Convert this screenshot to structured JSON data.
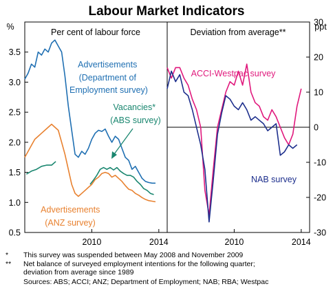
{
  "chart_data": {
    "type": "line",
    "title": "Labour Market Indicators",
    "panels": [
      {
        "subtitle": "Per cent of labour force",
        "yunit": "%",
        "ylim": [
          0.5,
          4.0
        ],
        "yticks": [
          0.5,
          1.0,
          1.5,
          2.0,
          2.5,
          3.0,
          3.5
        ],
        "xlim": [
          2006.0,
          2014.5
        ],
        "xticks": [
          2010,
          2014
        ],
        "series": [
          {
            "name": "Advertisements (Department of Employment survey)",
            "label_lines": [
              "Advertisements",
              "(Department of",
              "Employment survey)"
            ],
            "color": "#1f6fb2",
            "segments": [
              [
                [
                  2006.0,
                  3.05
                ],
                [
                  2006.2,
                  3.15
                ],
                [
                  2006.4,
                  3.3
                ],
                [
                  2006.6,
                  3.25
                ],
                [
                  2006.8,
                  3.5
                ],
                [
                  2007.0,
                  3.45
                ],
                [
                  2007.2,
                  3.55
                ],
                [
                  2007.4,
                  3.5
                ],
                [
                  2007.6,
                  3.65
                ],
                [
                  2007.8,
                  3.7
                ],
                [
                  2008.0,
                  3.6
                ],
                [
                  2008.2,
                  3.5
                ],
                [
                  2008.4,
                  3.1
                ],
                [
                  2008.6,
                  2.6
                ],
                [
                  2008.8,
                  2.2
                ],
                [
                  2009.0,
                  1.8
                ],
                [
                  2009.2,
                  1.75
                ],
                [
                  2009.4,
                  1.85
                ],
                [
                  2009.6,
                  1.8
                ],
                [
                  2009.8,
                  1.9
                ],
                [
                  2010.0,
                  2.05
                ],
                [
                  2010.2,
                  2.15
                ],
                [
                  2010.4,
                  2.2
                ],
                [
                  2010.6,
                  2.18
                ],
                [
                  2010.8,
                  2.22
                ],
                [
                  2011.0,
                  2.1
                ],
                [
                  2011.2,
                  2.0
                ],
                [
                  2011.4,
                  2.1
                ],
                [
                  2011.6,
                  2.05
                ],
                [
                  2011.8,
                  1.9
                ],
                [
                  2012.0,
                  1.75
                ],
                [
                  2012.2,
                  1.7
                ],
                [
                  2012.4,
                  1.55
                ],
                [
                  2012.6,
                  1.6
                ],
                [
                  2012.8,
                  1.5
                ],
                [
                  2013.0,
                  1.4
                ],
                [
                  2013.2,
                  1.35
                ],
                [
                  2013.4,
                  1.33
                ],
                [
                  2013.6,
                  1.32
                ],
                [
                  2013.8,
                  1.32
                ]
              ]
            ]
          },
          {
            "name": "Vacancies* (ABS survey)",
            "label_lines": [
              "Vacancies*",
              "(ABS survey)"
            ],
            "color": "#19866f",
            "segments": [
              [
                [
                  2006.1,
                  1.47
                ],
                [
                  2006.4,
                  1.52
                ],
                [
                  2006.7,
                  1.55
                ],
                [
                  2007.0,
                  1.6
                ],
                [
                  2007.3,
                  1.62
                ],
                [
                  2007.6,
                  1.62
                ],
                [
                  2007.85,
                  1.68
                ]
              ],
              [
                [
                  2009.9,
                  1.3
                ],
                [
                  2010.1,
                  1.37
                ],
                [
                  2010.3,
                  1.45
                ],
                [
                  2010.5,
                  1.55
                ],
                [
                  2010.7,
                  1.58
                ],
                [
                  2010.9,
                  1.55
                ],
                [
                  2011.1,
                  1.58
                ],
                [
                  2011.3,
                  1.54
                ],
                [
                  2011.5,
                  1.58
                ],
                [
                  2011.7,
                  1.52
                ],
                [
                  2011.9,
                  1.48
                ],
                [
                  2012.1,
                  1.45
                ],
                [
                  2012.3,
                  1.45
                ],
                [
                  2012.5,
                  1.42
                ],
                [
                  2012.7,
                  1.35
                ],
                [
                  2012.9,
                  1.3
                ],
                [
                  2013.1,
                  1.23
                ],
                [
                  2013.3,
                  1.2
                ],
                [
                  2013.5,
                  1.15
                ],
                [
                  2013.7,
                  1.13
                ]
              ]
            ]
          },
          {
            "name": "Advertisements (ANZ survey)",
            "label_lines": [
              "Advertisements",
              "(ANZ survey)"
            ],
            "color": "#e8812f",
            "segments": [
              [
                [
                  2006.0,
                  1.75
                ],
                [
                  2006.2,
                  1.85
                ],
                [
                  2006.4,
                  1.95
                ],
                [
                  2006.6,
                  2.05
                ],
                [
                  2006.8,
                  2.1
                ],
                [
                  2007.0,
                  2.15
                ],
                [
                  2007.2,
                  2.2
                ],
                [
                  2007.4,
                  2.25
                ],
                [
                  2007.6,
                  2.3
                ],
                [
                  2007.8,
                  2.25
                ],
                [
                  2008.0,
                  2.2
                ],
                [
                  2008.2,
                  2.0
                ],
                [
                  2008.4,
                  1.8
                ],
                [
                  2008.6,
                  1.55
                ],
                [
                  2008.8,
                  1.3
                ],
                [
                  2009.0,
                  1.15
                ],
                [
                  2009.2,
                  1.1
                ],
                [
                  2009.4,
                  1.15
                ],
                [
                  2009.6,
                  1.2
                ],
                [
                  2009.8,
                  1.25
                ],
                [
                  2010.0,
                  1.3
                ],
                [
                  2010.2,
                  1.38
                ],
                [
                  2010.4,
                  1.42
                ],
                [
                  2010.6,
                  1.48
                ],
                [
                  2010.8,
                  1.5
                ],
                [
                  2011.0,
                  1.48
                ],
                [
                  2011.2,
                  1.42
                ],
                [
                  2011.4,
                  1.45
                ],
                [
                  2011.6,
                  1.4
                ],
                [
                  2011.8,
                  1.35
                ],
                [
                  2012.0,
                  1.28
                ],
                [
                  2012.2,
                  1.22
                ],
                [
                  2012.4,
                  1.2
                ],
                [
                  2012.6,
                  1.15
                ],
                [
                  2012.8,
                  1.12
                ],
                [
                  2013.0,
                  1.08
                ],
                [
                  2013.2,
                  1.05
                ],
                [
                  2013.4,
                  1.03
                ],
                [
                  2013.6,
                  1.02
                ],
                [
                  2013.8,
                  1.01
                ]
              ]
            ]
          }
        ]
      },
      {
        "subtitle": "Deviation from average**",
        "yunit": "ppt",
        "ylim": [
          -30,
          30
        ],
        "yticks": [
          -30,
          -20,
          -10,
          0,
          10,
          20,
          30
        ],
        "xlim": [
          2006.0,
          2014.5
        ],
        "xticks": [
          2010,
          2014
        ],
        "series": [
          {
            "name": "ACCI-Westpac survey",
            "label_lines": [
              "ACCI-Westpac survey"
            ],
            "color": "#e0187c",
            "segments": [
              [
                [
                  2006.0,
                  17
                ],
                [
                  2006.25,
                  14
                ],
                [
                  2006.5,
                  17
                ],
                [
                  2006.75,
                  17
                ],
                [
                  2007.0,
                  14
                ],
                [
                  2007.25,
                  12
                ],
                [
                  2007.5,
                  8
                ],
                [
                  2007.75,
                  5
                ],
                [
                  2008.0,
                  0
                ],
                [
                  2008.25,
                  -18
                ],
                [
                  2008.5,
                  -25
                ],
                [
                  2008.75,
                  -12
                ],
                [
                  2009.0,
                  0
                ],
                [
                  2009.25,
                  5
                ],
                [
                  2009.5,
                  10
                ],
                [
                  2009.75,
                  13
                ],
                [
                  2010.0,
                  12
                ],
                [
                  2010.25,
                  16
                ],
                [
                  2010.5,
                  12
                ],
                [
                  2010.75,
                  18
                ],
                [
                  2011.0,
                  10
                ],
                [
                  2011.25,
                  7
                ],
                [
                  2011.5,
                  6
                ],
                [
                  2011.75,
                  3
                ],
                [
                  2012.0,
                  2
                ],
                [
                  2012.25,
                  5
                ],
                [
                  2012.5,
                  3
                ],
                [
                  2012.75,
                  0
                ],
                [
                  2013.0,
                  -3
                ],
                [
                  2013.25,
                  -5
                ],
                [
                  2013.5,
                  -2
                ],
                [
                  2013.75,
                  6
                ],
                [
                  2014.0,
                  11
                ]
              ]
            ]
          },
          {
            "name": "NAB survey",
            "label_lines": [
              "NAB survey"
            ],
            "color": "#1c2e8c",
            "segments": [
              [
                [
                  2006.0,
                  11
                ],
                [
                  2006.25,
                  16
                ],
                [
                  2006.5,
                  13
                ],
                [
                  2006.75,
                  15
                ],
                [
                  2007.0,
                  10
                ],
                [
                  2007.25,
                  9
                ],
                [
                  2007.5,
                  5
                ],
                [
                  2007.75,
                  0
                ],
                [
                  2008.0,
                  -5
                ],
                [
                  2008.25,
                  -12
                ],
                [
                  2008.5,
                  -27
                ],
                [
                  2008.75,
                  -15
                ],
                [
                  2009.0,
                  -2
                ],
                [
                  2009.25,
                  4
                ],
                [
                  2009.5,
                  9
                ],
                [
                  2009.75,
                  8
                ],
                [
                  2010.0,
                  6
                ],
                [
                  2010.25,
                  5
                ],
                [
                  2010.5,
                  7
                ],
                [
                  2010.75,
                  5
                ],
                [
                  2011.0,
                  2
                ],
                [
                  2011.25,
                  3
                ],
                [
                  2011.5,
                  2
                ],
                [
                  2011.75,
                  1
                ],
                [
                  2012.0,
                  -1
                ],
                [
                  2012.25,
                  0
                ],
                [
                  2012.5,
                  1
                ],
                [
                  2012.75,
                  -8
                ],
                [
                  2013.0,
                  -7
                ],
                [
                  2013.25,
                  -5
                ],
                [
                  2013.5,
                  -6
                ],
                [
                  2013.75,
                  -5
                ]
              ]
            ]
          }
        ]
      }
    ],
    "footnotes": [
      {
        "mark": "*",
        "lines": [
          "This survey was suspended between May 2008 and November 2009"
        ]
      },
      {
        "mark": "**",
        "lines": [
          "Net balance of surveyed employment intentions for the following quarter;",
          "deviation from average since 1989"
        ]
      }
    ],
    "sources": "Sources: ABS; ACCI; ANZ; Department of Employment; NAB; RBA; Westpac"
  }
}
